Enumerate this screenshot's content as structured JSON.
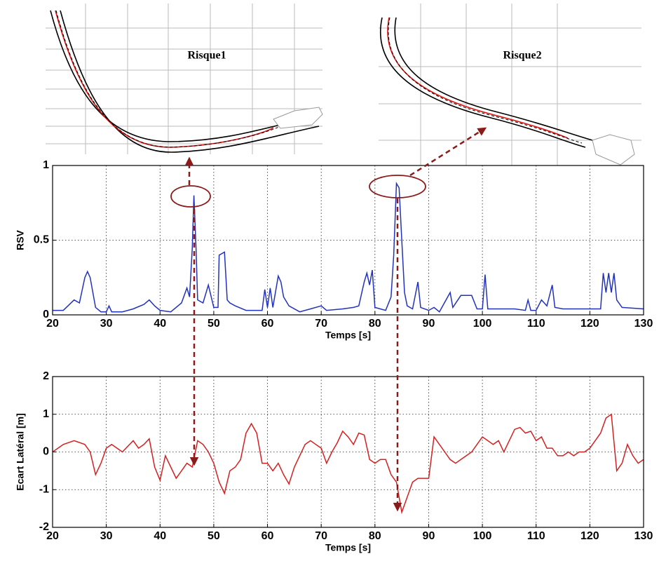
{
  "chart_data": [
    {
      "type": "line",
      "annotations": [
        "Risque1",
        "Risque2"
      ],
      "xlabel": "Temps [s]",
      "ylabel": "RSV",
      "xlim": [
        20,
        130
      ],
      "xticks": [
        20,
        30,
        40,
        50,
        60,
        70,
        80,
        90,
        100,
        110,
        120,
        130
      ],
      "ylim": [
        0,
        1
      ],
      "yticks": [
        0,
        0.5,
        1
      ],
      "grid": true,
      "series": [
        {
          "color": "#2233bb",
          "x": [
            20,
            22,
            24,
            25,
            26,
            26.5,
            27,
            28,
            29,
            30,
            30.5,
            31,
            33,
            35,
            37,
            38,
            39,
            40,
            42,
            44,
            45,
            45.5,
            46,
            46.3,
            46.7,
            47,
            48,
            49,
            50,
            50.8,
            51,
            52,
            52.5,
            53,
            54,
            56,
            58,
            59,
            59.5,
            60,
            60.5,
            61,
            62,
            62.5,
            63,
            64,
            66,
            68,
            70,
            71,
            74,
            76,
            77,
            78,
            78.5,
            79,
            79.5,
            80,
            82,
            83,
            83.5,
            84,
            84.5,
            85,
            85.5,
            86,
            87,
            88,
            88.5,
            90,
            91,
            92,
            94,
            94.5,
            96,
            98,
            99,
            100,
            100.5,
            101,
            103,
            106,
            108,
            108.5,
            109,
            110,
            111,
            112,
            113,
            113.5,
            115,
            118,
            120,
            122,
            122.5,
            123,
            123.5,
            124,
            124.5,
            125,
            126,
            130
          ],
          "values": [
            0.03,
            0.03,
            0.1,
            0.08,
            0.25,
            0.29,
            0.25,
            0.05,
            0.02,
            0.02,
            0.06,
            0.02,
            0.02,
            0.04,
            0.07,
            0.1,
            0.06,
            0.03,
            0.02,
            0.08,
            0.18,
            0.12,
            0.45,
            0.8,
            0.45,
            0.1,
            0.08,
            0.2,
            0.05,
            0.05,
            0.4,
            0.42,
            0.1,
            0.08,
            0.06,
            0.03,
            0.03,
            0.03,
            0.17,
            0.05,
            0.18,
            0.05,
            0.26,
            0.22,
            0.12,
            0.06,
            0.02,
            0.04,
            0.06,
            0.03,
            0.04,
            0.05,
            0.06,
            0.22,
            0.28,
            0.2,
            0.3,
            0.05,
            0.03,
            0.12,
            0.4,
            0.88,
            0.85,
            0.5,
            0.15,
            0.06,
            0.04,
            0.22,
            0.05,
            0.03,
            0.05,
            0.02,
            0.15,
            0.05,
            0.13,
            0.13,
            0.04,
            0.04,
            0.27,
            0.04,
            0.04,
            0.04,
            0.03,
            0.1,
            0.03,
            0.03,
            0.1,
            0.06,
            0.2,
            0.05,
            0.04,
            0.04,
            0.04,
            0.04,
            0.28,
            0.15,
            0.28,
            0.15,
            0.28,
            0.1,
            0.05,
            0.04
          ]
        }
      ]
    },
    {
      "type": "line",
      "xlabel": "Temps [s]",
      "ylabel": "Ecart Latéral [m]",
      "xlim": [
        20,
        130
      ],
      "xticks": [
        20,
        30,
        40,
        50,
        60,
        70,
        80,
        90,
        100,
        110,
        120,
        130
      ],
      "ylim": [
        -2,
        2
      ],
      "yticks": [
        -2,
        -1,
        0,
        1,
        2
      ],
      "grid": true,
      "series": [
        {
          "color": "#d42020",
          "x": [
            20,
            22,
            24,
            26,
            27,
            28,
            29,
            30,
            31,
            33,
            35,
            36,
            37,
            38,
            39,
            40,
            41,
            42,
            43,
            44,
            45,
            46,
            47,
            48,
            49,
            50,
            51,
            52,
            53,
            54,
            55,
            56,
            57,
            58,
            59,
            60,
            61,
            62,
            63,
            64,
            65,
            66,
            67,
            68,
            69,
            70,
            71,
            72,
            73,
            74,
            75,
            76,
            77,
            78,
            79,
            80,
            81,
            82,
            83,
            84,
            85,
            86,
            87,
            88,
            89,
            90,
            91,
            92,
            93,
            94,
            95,
            96,
            97,
            98,
            99,
            100,
            101,
            102,
            103,
            104,
            105,
            106,
            107,
            108,
            109,
            110,
            111,
            112,
            113,
            114,
            115,
            116,
            117,
            118,
            119,
            120,
            121,
            122,
            123,
            124,
            125,
            126,
            127,
            128,
            129,
            130
          ],
          "values": [
            0,
            0.2,
            0.3,
            0.2,
            0,
            -0.6,
            -0.3,
            0.1,
            0.2,
            0,
            0.3,
            0.1,
            0.2,
            0.35,
            -0.4,
            -0.75,
            -0.1,
            -0.4,
            -0.7,
            -0.5,
            -0.3,
            -0.4,
            0.3,
            0.2,
            0,
            -0.3,
            -0.8,
            -1.1,
            -0.5,
            -0.4,
            -0.2,
            0.5,
            0.75,
            0.5,
            -0.3,
            -0.3,
            -0.5,
            -0.3,
            -0.6,
            -0.85,
            -0.4,
            -0.1,
            0.2,
            0.3,
            0.2,
            0.1,
            -0.3,
            0,
            0.25,
            0.55,
            0.4,
            0.2,
            0.5,
            0.45,
            -0.2,
            -0.3,
            -0.2,
            -0.2,
            -0.6,
            -0.8,
            -1.6,
            -1.2,
            -0.8,
            -0.7,
            -0.7,
            -0.7,
            0.4,
            0.2,
            0,
            -0.2,
            -0.3,
            -0.2,
            -0.1,
            0,
            0.2,
            0.4,
            0.3,
            0.2,
            0.3,
            0,
            0.3,
            0.6,
            0.65,
            0.5,
            0.55,
            0.3,
            0.4,
            0.1,
            0.1,
            -0.1,
            -0.1,
            0,
            -0.1,
            0,
            0,
            0.1,
            0.3,
            0.5,
            0.9,
            1.0,
            -0.5,
            -0.3,
            0.2,
            -0.1,
            -0.3,
            -0.2
          ]
        }
      ]
    }
  ]
}
